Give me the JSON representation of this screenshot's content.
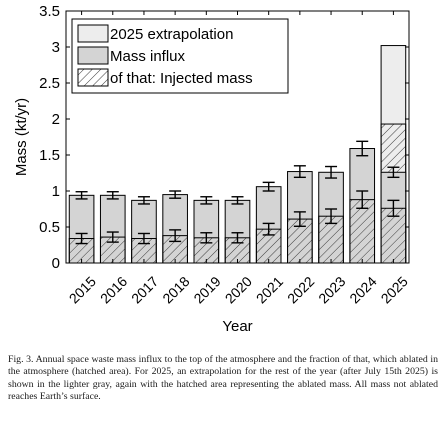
{
  "chart_data": {
    "type": "bar",
    "categories": [
      "2015",
      "2016",
      "2017",
      "2018",
      "2019",
      "2020",
      "2021",
      "2022",
      "2023",
      "2024",
      "2025"
    ],
    "series": [
      {
        "name": "Mass influx",
        "values": [
          0.94,
          0.94,
          0.87,
          0.95,
          0.87,
          0.87,
          1.06,
          1.27,
          1.26,
          1.59,
          1.26
        ],
        "error": [
          0.05,
          0.05,
          0.05,
          0.05,
          0.05,
          0.05,
          0.06,
          0.08,
          0.08,
          0.1,
          0.07
        ]
      },
      {
        "name": "of that: Injected mass",
        "values": [
          0.34,
          0.36,
          0.34,
          0.38,
          0.35,
          0.35,
          0.47,
          0.61,
          0.65,
          0.88,
          0.76
        ],
        "error": [
          0.07,
          0.07,
          0.07,
          0.08,
          0.07,
          0.07,
          0.08,
          0.1,
          0.1,
          0.12,
          0.11
        ]
      },
      {
        "name": "2025 extrapolation",
        "values": [
          null,
          null,
          null,
          null,
          null,
          null,
          null,
          null,
          null,
          null,
          3.02
        ],
        "injected_values": [
          null,
          null,
          null,
          null,
          null,
          null,
          null,
          null,
          null,
          null,
          1.93
        ]
      }
    ],
    "xlabel": "Year",
    "ylabel": "Mass (kt/yr)",
    "ylim": [
      0,
      3.5
    ],
    "yticks": [
      "0",
      "0.5",
      "1",
      "1.5",
      "2",
      "2.5",
      "3",
      "3.5"
    ],
    "legend": {
      "position": "top-left",
      "entries": [
        "2025 extrapolation",
        "Mass influx",
        "of that: Injected mass"
      ]
    },
    "grid": false
  },
  "caption": "Fig. 3. Annual space waste mass influx to the top of the atmosphere and the fraction of that, which ablated in the atmosphere (hatched area). For 2025, an extrapolation for the rest of the year (after July 15th 2025) is shown in the lighter gray, again with the hatched area representing the ablated mass. All mass not ablated reaches Earth’s surface.",
  "colors": {
    "influx_fill": "#d4d4d4",
    "extrapolation_fill": "#ededed",
    "hatch": "#3a3a3a",
    "axis": "#000000"
  }
}
